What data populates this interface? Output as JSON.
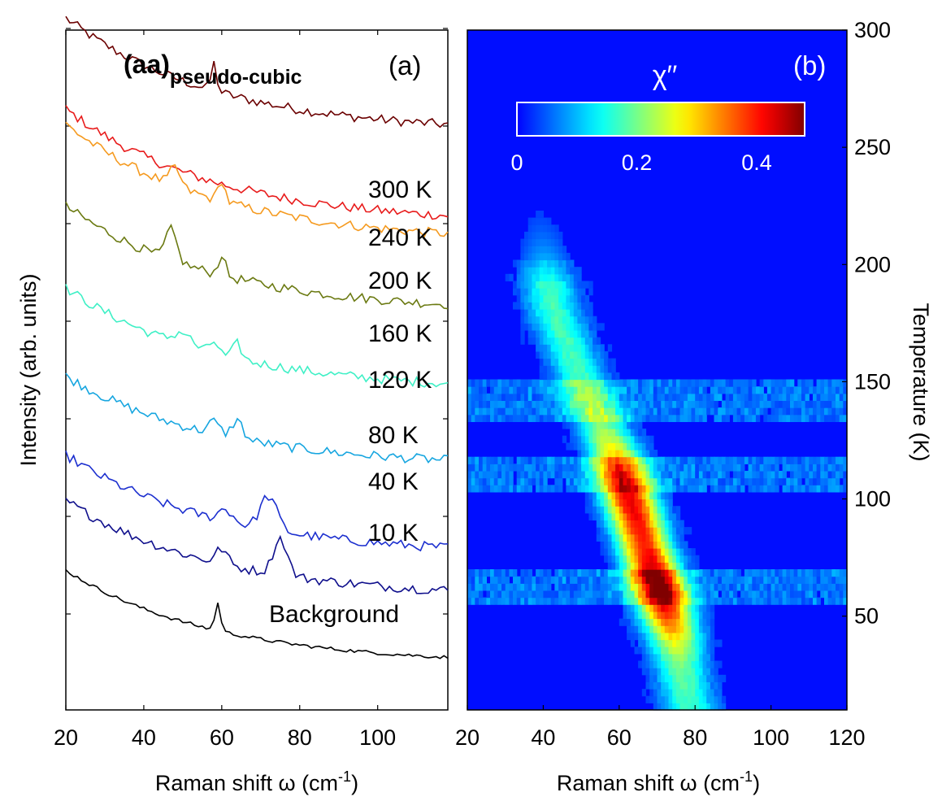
{
  "chart_data": [
    {
      "panel": "a",
      "type": "line",
      "panel_label": "(a)",
      "title_main": "(aa)",
      "title_sub": "pseudo-cubic",
      "xlabel": "Raman shift ω (cm",
      "xlabel_sup": "-1",
      "xlabel_close": ")",
      "ylabel": "Intensity (arb. units)",
      "xlim": [
        20,
        118
      ],
      "xticks": [
        20,
        40,
        60,
        80,
        100
      ],
      "series": [
        {
          "name": "300 K",
          "label": "300 K",
          "color": "#6b0000",
          "offset": 8.75,
          "amp": 1.9,
          "features": [
            [
              58,
              1.0,
              0.45
            ]
          ]
        },
        {
          "name": "240 K",
          "label": "240 K",
          "color": "#e81b1b",
          "offset": 7.25,
          "amp": 1.9,
          "features": []
        },
        {
          "name": "200 K",
          "label": "200 K",
          "color": "#f59a1f",
          "offset": 6.95,
          "amp": 1.95,
          "features": [
            [
              48,
              1.8,
              0.3
            ],
            [
              60,
              1.2,
              0.35
            ]
          ]
        },
        {
          "name": "160 K",
          "label": "160 K",
          "color": "#6b7a12",
          "offset": 5.8,
          "amp": 1.75,
          "features": [
            [
              47,
              2.0,
              0.5
            ],
            [
              60,
              1.2,
              0.35
            ]
          ]
        },
        {
          "name": "120 K",
          "label": "120 K",
          "color": "#3ff0c6",
          "offset": 4.5,
          "amp": 1.7,
          "features": [
            [
              50,
              3.0,
              0.2
            ],
            [
              58,
              1.5,
              0.2
            ],
            [
              64,
              1.5,
              0.25
            ]
          ]
        },
        {
          "name": "80 K",
          "label": "80 K",
          "color": "#17a6e0",
          "offset": 3.25,
          "amp": 1.5,
          "features": [
            [
              58,
              2.0,
              0.2
            ],
            [
              64,
              2.0,
              0.3
            ]
          ]
        },
        {
          "name": "40 K",
          "label": "40 K",
          "color": "#1c2fcf",
          "offset": 1.8,
          "amp": 1.65,
          "features": [
            [
              61,
              2.5,
              0.2
            ],
            [
              72,
              3.0,
              0.55
            ]
          ]
        },
        {
          "name": "10 K",
          "label": "10 K",
          "color": "#0f0f8c",
          "offset": 1.1,
          "amp": 1.6,
          "features": [
            [
              60,
              2.0,
              0.25
            ],
            [
              75,
              2.5,
              0.6
            ]
          ]
        },
        {
          "name": "Background",
          "label": "Background",
          "color": "#000000",
          "offset": 0.0,
          "amp": 1.55,
          "features": [
            [
              59,
              1.0,
              0.45
            ]
          ]
        }
      ]
    },
    {
      "panel": "b",
      "type": "heatmap",
      "panel_label": "(b)",
      "colorbar_label": "χ′′",
      "colorbar_ticks": [
        "0",
        "0.2",
        "0.4"
      ],
      "colorbar_range": [
        0,
        0.48
      ],
      "xlabel": "Raman shift ω (cm",
      "xlabel_sup": "-1",
      "xlabel_close": ")",
      "ylabel": "Temperature (K)",
      "xlim": [
        20,
        120
      ],
      "ylim": [
        10,
        300
      ],
      "xticks": [
        20,
        40,
        60,
        80,
        100,
        120
      ],
      "yticks": [
        50,
        100,
        150,
        200,
        250,
        300
      ],
      "colormap": "jet",
      "peak_track": [
        [
          10,
          78
        ],
        [
          40,
          74
        ],
        [
          60,
          70
        ],
        [
          80,
          66
        ],
        [
          100,
          62
        ],
        [
          120,
          58
        ],
        [
          140,
          52
        ],
        [
          160,
          47
        ],
        [
          180,
          42
        ],
        [
          200,
          40
        ],
        [
          230,
          38
        ]
      ],
      "peak_max": [
        [
          60,
          70,
          0.46
        ],
        [
          100,
          62,
          0.4
        ]
      ]
    }
  ]
}
